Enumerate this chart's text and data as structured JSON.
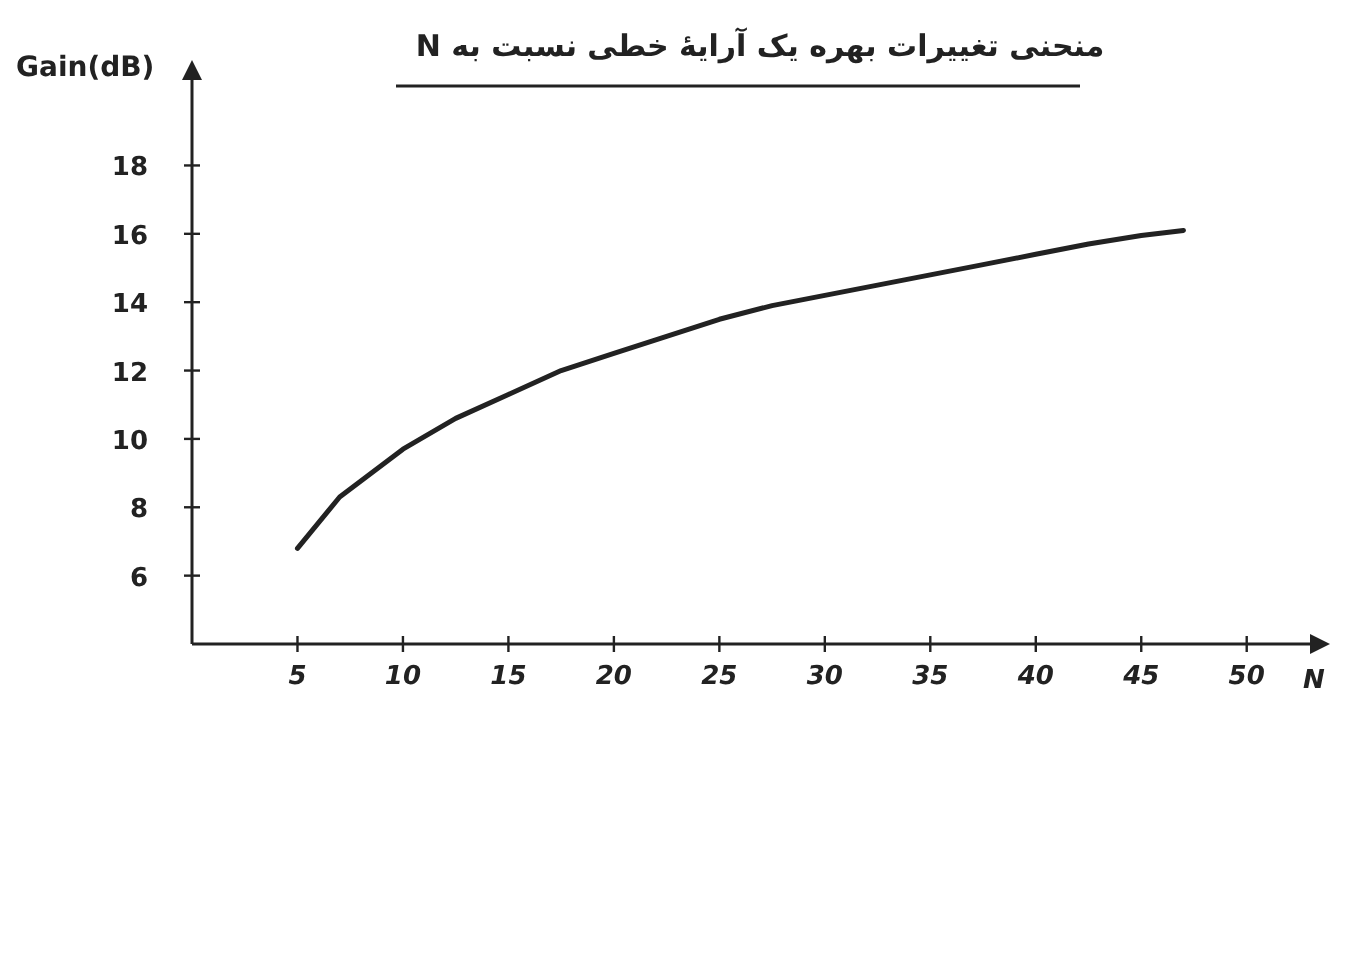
{
  "chart_data": {
    "type": "line",
    "title": "منحنی تغییرات بهره یک آرایهٔ خطی نسبت به N",
    "xlabel": "N",
    "ylabel": "Gain(dB)",
    "x": [
      5,
      7,
      10,
      12.5,
      15,
      17.5,
      20,
      22.5,
      25,
      27.5,
      30,
      32.5,
      35,
      37.5,
      40,
      42.5,
      45,
      47
    ],
    "series": [
      {
        "color": "#222222",
        "values": [
          6.8,
          8.3,
          9.7,
          10.6,
          11.3,
          12.0,
          12.5,
          13.0,
          13.5,
          13.9,
          14.2,
          14.5,
          14.8,
          15.1,
          15.4,
          15.7,
          15.95,
          16.1
        ]
      }
    ],
    "xlim": [
      0,
      53
    ],
    "ylim": [
      4,
      20.5
    ],
    "xticks": [
      5,
      10,
      15,
      20,
      25,
      30,
      35,
      40,
      45,
      50
    ],
    "yticks": [
      6,
      8,
      10,
      12,
      14,
      16,
      18
    ],
    "grid": false,
    "line_style": "solid"
  }
}
